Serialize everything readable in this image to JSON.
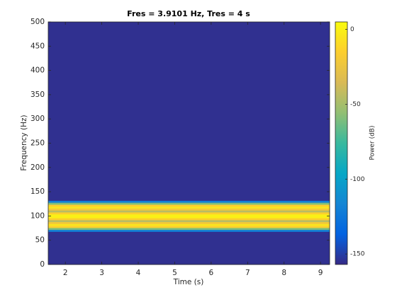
{
  "chart_data": {
    "type": "spectrogram",
    "title": "Fres = 3.9101 Hz, Tres = 4 s",
    "x_label": "Time (s)",
    "y_label": "Frequency (Hz)",
    "colorbar_label": "Power (dB)",
    "frequencies": [
      0,
      66,
      70,
      74,
      78,
      82,
      86,
      90,
      94,
      98,
      102,
      106,
      110,
      114,
      118,
      122,
      126,
      130,
      134,
      500
    ],
    "power": [
      -155,
      -155,
      -120,
      -60,
      -15,
      -5,
      -20,
      -45,
      -15,
      0,
      0,
      -15,
      -45,
      -20,
      -5,
      -15,
      -60,
      -120,
      -155,
      -155
    ],
    "xlim": [
      1.53,
      9.25
    ],
    "xticks": [
      2,
      3,
      4,
      5,
      6,
      7,
      8,
      9
    ],
    "ylim": [
      0,
      500
    ],
    "yticks": [
      0,
      50,
      100,
      150,
      200,
      250,
      300,
      350,
      400,
      450,
      500
    ],
    "clim": [
      -157,
      5
    ],
    "cticks": [
      0,
      -50,
      -100,
      -150
    ],
    "colormap": [
      "#352a87",
      "#0363e1",
      "#1485d4",
      "#06a7c6",
      "#38b99e",
      "#92bf73",
      "#d9ba56",
      "#fcce2e",
      "#f9fb0e"
    ]
  }
}
